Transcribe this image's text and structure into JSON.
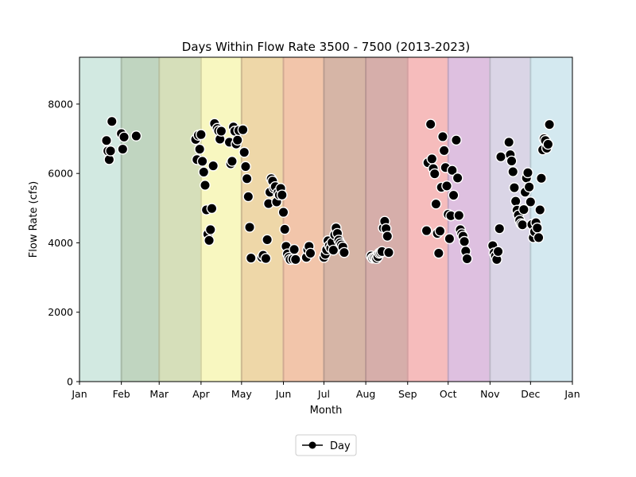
{
  "chart_data": {
    "type": "scatter",
    "title": "Days Within Flow Rate 3500 - 7500 (2013-2023)",
    "xlabel": "Month",
    "ylabel": "Flow Rate (cfs)",
    "xlim": [
      "Jan 1",
      "Jan 1 (next year)"
    ],
    "ylim": [
      0,
      9350
    ],
    "x_ticks": [
      "Jan",
      "Feb",
      "Mar",
      "Apr",
      "May",
      "Jun",
      "Jul",
      "Aug",
      "Sep",
      "Oct",
      "Nov",
      "Dec",
      "Jan"
    ],
    "y_ticks": [
      0,
      2000,
      4000,
      6000,
      8000
    ],
    "month_band_colors": [
      "#d2e9e1",
      "#c0d5c0",
      "#d6dfba",
      "#f8f7c0",
      "#eed7a8",
      "#f2c5aa",
      "#d6b5a6",
      "#d6aeaa",
      "#f6bcbc",
      "#dec0e0",
      "#dad5e6",
      "#d4e9f0"
    ],
    "marker_color": "#000000",
    "legend": {
      "position": "bottom-center",
      "label": "Day"
    },
    "series": [
      {
        "name": "Day",
        "points": [
          [
            "Jan 21",
            6950
          ],
          [
            "Jan 22",
            6650
          ],
          [
            "Jan 23",
            6400
          ],
          [
            "Jan 24",
            6650
          ],
          [
            "Jan 25",
            7500
          ],
          [
            "Feb 1",
            7150
          ],
          [
            "Feb 2",
            6700
          ],
          [
            "Feb 3",
            7050
          ],
          [
            "Feb 12",
            7080
          ],
          [
            "Mar 28",
            6980
          ],
          [
            "Mar 29",
            6400
          ],
          [
            "Mar 30",
            7100
          ],
          [
            "Mar 31",
            6700
          ],
          [
            "Apr 1",
            7120
          ],
          [
            "Apr 2",
            6350
          ],
          [
            "Apr 3",
            6040
          ],
          [
            "Apr 4",
            5660
          ],
          [
            "Apr 5",
            4950
          ],
          [
            "Apr 6",
            4250
          ],
          [
            "Apr 7",
            4070
          ],
          [
            "Apr 8",
            4380
          ],
          [
            "Apr 9",
            4990
          ],
          [
            "Apr 10",
            6220
          ],
          [
            "Apr 11",
            7440
          ],
          [
            "Apr 13",
            7300
          ],
          [
            "Apr 14",
            7230
          ],
          [
            "Apr 15",
            6990
          ],
          [
            "Apr 16",
            7220
          ],
          [
            "Apr 22",
            6900
          ],
          [
            "Apr 23",
            6280
          ],
          [
            "Apr 24",
            6350
          ],
          [
            "Apr 25",
            7340
          ],
          [
            "Apr 26",
            7220
          ],
          [
            "Apr 27",
            6850
          ],
          [
            "Apr 28",
            6960
          ],
          [
            "Apr 29",
            7240
          ],
          [
            "May 2",
            7260
          ],
          [
            "May 3",
            6610
          ],
          [
            "May 4",
            6200
          ],
          [
            "May 5",
            5850
          ],
          [
            "May 6",
            5330
          ],
          [
            "May 7",
            4450
          ],
          [
            "May 8",
            3560
          ],
          [
            "May 16",
            3580
          ],
          [
            "May 17",
            3640
          ],
          [
            "May 19",
            3550
          ],
          [
            "May 20",
            4090
          ],
          [
            "May 21",
            5130
          ],
          [
            "May 22",
            5460
          ],
          [
            "May 23",
            5850
          ],
          [
            "May 24",
            5780
          ],
          [
            "May 25",
            5580
          ],
          [
            "May 26",
            5620
          ],
          [
            "May 27",
            5180
          ],
          [
            "May 28",
            5450
          ],
          [
            "May 29",
            5380
          ],
          [
            "May 30",
            5570
          ],
          [
            "May 31",
            5380
          ],
          [
            "Jun 1",
            4880
          ],
          [
            "Jun 2",
            4390
          ],
          [
            "Jun 3",
            3900
          ],
          [
            "Jun 4",
            3680
          ],
          [
            "Jun 5",
            3580
          ],
          [
            "Jun 6",
            3520
          ],
          [
            "Jun 8",
            3530
          ],
          [
            "Jun 9",
            3810
          ],
          [
            "Jun 10",
            3520
          ],
          [
            "Jun 18",
            3580
          ],
          [
            "Jun 19",
            3800
          ],
          [
            "Jun 20",
            3900
          ],
          [
            "Jun 21",
            3700
          ],
          [
            "Jul 1",
            3580
          ],
          [
            "Jul 2",
            3670
          ],
          [
            "Jul 3",
            3800
          ],
          [
            "Jul 4",
            4060
          ],
          [
            "Jul 5",
            3920
          ],
          [
            "Jul 6",
            3850
          ],
          [
            "Jul 7",
            4010
          ],
          [
            "Jul 8",
            3790
          ],
          [
            "Jul 9",
            4230
          ],
          [
            "Jul 10",
            4430
          ],
          [
            "Jul 11",
            4270
          ],
          [
            "Jul 12",
            4080
          ],
          [
            "Jul 13",
            4000
          ],
          [
            "Jul 14",
            3940
          ],
          [
            "Jul 15",
            3880
          ],
          [
            "Jul 16",
            3720
          ],
          [
            "Aug 5",
            3620
          ],
          [
            "Aug 6",
            3560
          ],
          [
            "Aug 7",
            3580
          ],
          [
            "Aug 8",
            3570
          ],
          [
            "Aug 9",
            3550
          ],
          [
            "Aug 10",
            3600
          ],
          [
            "Aug 11",
            3700
          ],
          [
            "Aug 12",
            3720
          ],
          [
            "Aug 13",
            3750
          ],
          [
            "Aug 14",
            4430
          ],
          [
            "Aug 15",
            4620
          ],
          [
            "Aug 16",
            4410
          ],
          [
            "Aug 17",
            4190
          ],
          [
            "Aug 18",
            3720
          ],
          [
            "Sep 15",
            4350
          ],
          [
            "Sep 16",
            6310
          ],
          [
            "Sep 18",
            7420
          ],
          [
            "Sep 19",
            6420
          ],
          [
            "Sep 20",
            6140
          ],
          [
            "Sep 21",
            5990
          ],
          [
            "Sep 22",
            5120
          ],
          [
            "Sep 23",
            4270
          ],
          [
            "Sep 24",
            3700
          ],
          [
            "Sep 25",
            4340
          ],
          [
            "Sep 26",
            5600
          ],
          [
            "Sep 27",
            7060
          ],
          [
            "Sep 28",
            6660
          ],
          [
            "Sep 29",
            6170
          ],
          [
            "Sep 30",
            5640
          ],
          [
            "Oct 1",
            4820
          ],
          [
            "Oct 2",
            4120
          ],
          [
            "Oct 3",
            4780
          ],
          [
            "Oct 4",
            6090
          ],
          [
            "Oct 5",
            5370
          ],
          [
            "Oct 7",
            6960
          ],
          [
            "Oct 8",
            5870
          ],
          [
            "Oct 9",
            4790
          ],
          [
            "Oct 10",
            4380
          ],
          [
            "Oct 11",
            4260
          ],
          [
            "Oct 12",
            4190
          ],
          [
            "Oct 13",
            4040
          ],
          [
            "Oct 14",
            3760
          ],
          [
            "Oct 15",
            3540
          ],
          [
            "Nov 3",
            3920
          ],
          [
            "Nov 4",
            3710
          ],
          [
            "Nov 5",
            3620
          ],
          [
            "Nov 6",
            3520
          ],
          [
            "Nov 7",
            3750
          ],
          [
            "Nov 8",
            4410
          ],
          [
            "Nov 9",
            6480
          ],
          [
            "Nov 15",
            6900
          ],
          [
            "Nov 16",
            6540
          ],
          [
            "Nov 17",
            6360
          ],
          [
            "Nov 18",
            6050
          ],
          [
            "Nov 19",
            5590
          ],
          [
            "Nov 20",
            5200
          ],
          [
            "Nov 21",
            4940
          ],
          [
            "Nov 22",
            4800
          ],
          [
            "Nov 23",
            4650
          ],
          [
            "Nov 24",
            4550
          ],
          [
            "Nov 25",
            4520
          ],
          [
            "Nov 26",
            4960
          ],
          [
            "Nov 27",
            5460
          ],
          [
            "Nov 28",
            5870
          ],
          [
            "Nov 29",
            6020
          ],
          [
            "Nov 30",
            5610
          ],
          [
            "Dec 1",
            5180
          ],
          [
            "Dec 2",
            4530
          ],
          [
            "Dec 3",
            4150
          ],
          [
            "Dec 4",
            4320
          ],
          [
            "Dec 5",
            4580
          ],
          [
            "Dec 6",
            4430
          ],
          [
            "Dec 7",
            4150
          ],
          [
            "Dec 8",
            4950
          ],
          [
            "Dec 9",
            5860
          ],
          [
            "Dec 10",
            6680
          ],
          [
            "Dec 11",
            7000
          ],
          [
            "Dec 12",
            6950
          ],
          [
            "Dec 13",
            6730
          ],
          [
            "Dec 14",
            6840
          ],
          [
            "Dec 15",
            7410
          ]
        ]
      }
    ]
  }
}
